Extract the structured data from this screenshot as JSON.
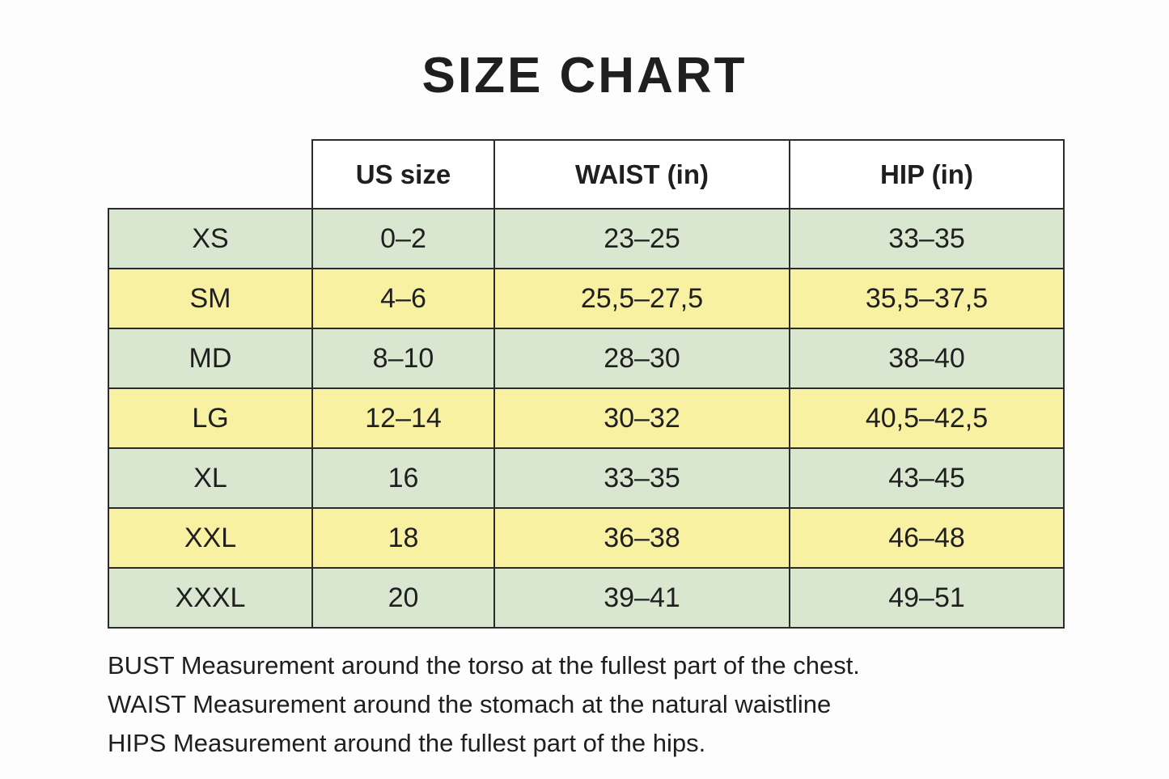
{
  "title": "SIZE CHART",
  "table": {
    "headers": [
      "US size",
      "WAIST (in)",
      "HIP (in)"
    ],
    "rows": [
      {
        "size": "XS",
        "us_size": "0–2",
        "waist": "23–25",
        "hip": "33–35"
      },
      {
        "size": "SM",
        "us_size": "4–6",
        "waist": "25,5–27,5",
        "hip": "35,5–37,5"
      },
      {
        "size": "MD",
        "us_size": "8–10",
        "waist": "28–30",
        "hip": "38–40"
      },
      {
        "size": "LG",
        "us_size": "12–14",
        "waist": "30–32",
        "hip": "40,5–42,5"
      },
      {
        "size": "XL",
        "us_size": "16",
        "waist": "33–35",
        "hip": "43–45"
      },
      {
        "size": "XXL",
        "us_size": "18",
        "waist": "36–38",
        "hip": "46–48"
      },
      {
        "size": "XXXL",
        "us_size": "20",
        "waist": "39–41",
        "hip": "49–51"
      }
    ]
  },
  "notes": [
    "BUST Measurement around the torso at the fullest part of the chest.",
    "WAIST Measurement around the stomach at the natural waistline",
    "HIPS Measurement around the fullest part of the hips."
  ],
  "colors": {
    "background": "#fdfdfd",
    "header_bg": "#ffffff",
    "row_green": "#d9e7d1",
    "row_yellow": "#f9f1a2",
    "border": "#2b2b2b",
    "text": "#1f1f1f"
  }
}
